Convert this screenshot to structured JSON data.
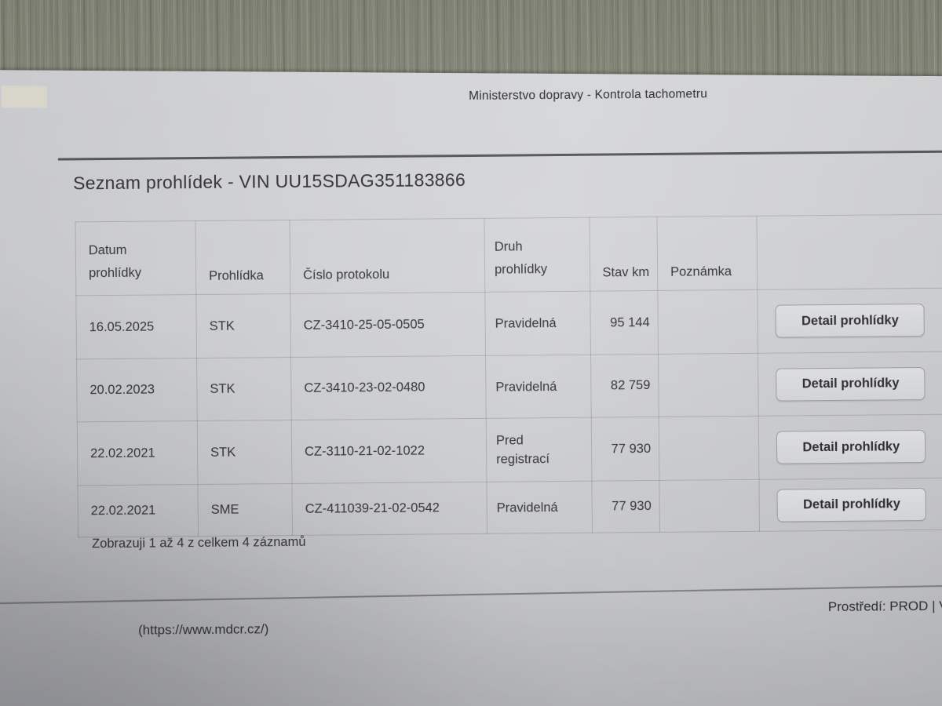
{
  "colors": {
    "background_surface": "#8b8e7e",
    "paper": "#cfd0d3",
    "text": "#353538",
    "table_border": "#a6a6ac",
    "button_bg": "#d9dadd",
    "button_border": "#9b9ba1"
  },
  "page": {
    "site_header": "Ministerstvo dopravy - Kontrola tachometru",
    "title": "Seznam prohlídek - VIN UU15SDAG351183866"
  },
  "table": {
    "headers": [
      "Datum prohlídky",
      "Prohlídka",
      "Číslo protokolu",
      "Druh prohlídky",
      "Stav km",
      "Poznámka"
    ],
    "detail_button_label": "Detail prohlídky",
    "rows": [
      {
        "date": "16.05.2025",
        "type": "STK",
        "protocol": "CZ-3410-25-05-0505",
        "kind": "Pravidelná",
        "km": "95 144",
        "note": ""
      },
      {
        "date": "20.02.2023",
        "type": "STK",
        "protocol": "CZ-3410-23-02-0480",
        "kind": "Pravidelná",
        "km": "82 759",
        "note": ""
      },
      {
        "date": "22.02.2021",
        "type": "STK",
        "protocol": "CZ-3110-21-02-1022",
        "kind": "Pred registrací",
        "km": "77 930",
        "note": ""
      },
      {
        "date": "22.02.2021",
        "type": "SME",
        "protocol": "CZ-411039-21-02-0542",
        "kind": "Pravidelná",
        "km": "77 930",
        "note": ""
      }
    ]
  },
  "footer": {
    "summary": "Zobrazuji 1 až 4 z celkem 4 záznamů",
    "link": "(https://www.mdcr.cz/)",
    "environment": "Prostředí: PROD | V"
  }
}
